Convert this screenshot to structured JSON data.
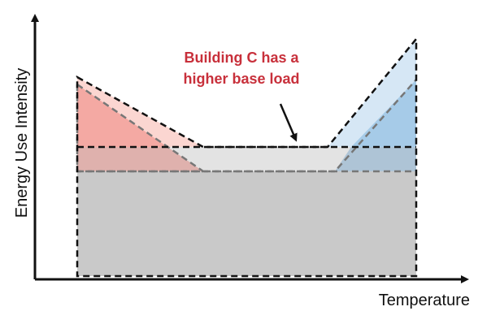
{
  "diagram": {
    "y_axis_label": "Energy Use Intensity",
    "x_axis_label": "Temperature",
    "annotation_lines": [
      "Building C has a",
      "higher base load"
    ],
    "colors": {
      "base_load_fill": "#c9c9c9",
      "raised_base_fill": "#e3e3e3",
      "heating_fill": "#f4a9a3",
      "heating_fill_light": "#fbd6d1",
      "cooling_fill": "#a6cbe8",
      "cooling_fill_light": "#d6e7f5",
      "dashed_dark": "#111111",
      "dashed_gray": "#777777",
      "annotation": "#c8303b",
      "axis": "#111111"
    }
  }
}
